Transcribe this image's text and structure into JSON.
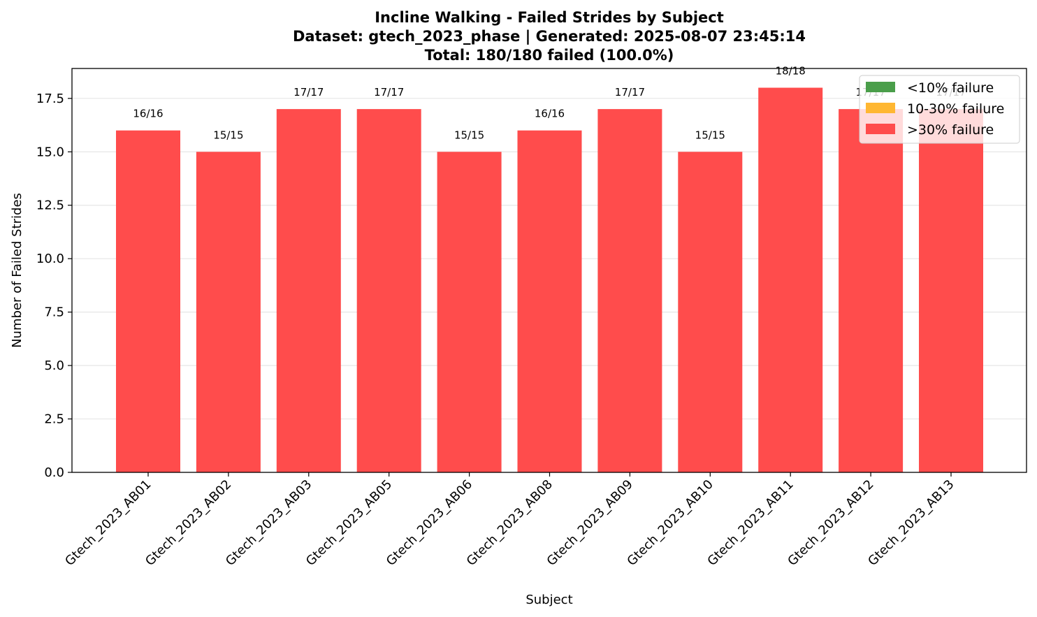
{
  "chart_data": {
    "type": "bar",
    "title": [
      "Incline Walking - Failed Strides by Subject",
      "Dataset: gtech_2023_phase | Generated: 2025-08-07 23:45:14",
      "Total: 180/180 failed (100.0%)"
    ],
    "xlabel": "Subject",
    "ylabel": "Number of Failed Strides",
    "categories": [
      "Gtech_2023_AB01",
      "Gtech_2023_AB02",
      "Gtech_2023_AB03",
      "Gtech_2023_AB05",
      "Gtech_2023_AB06",
      "Gtech_2023_AB08",
      "Gtech_2023_AB09",
      "Gtech_2023_AB10",
      "Gtech_2023_AB11",
      "Gtech_2023_AB12",
      "Gtech_2023_AB13"
    ],
    "values": [
      16,
      15,
      17,
      17,
      15,
      16,
      17,
      15,
      18,
      17,
      17
    ],
    "data_labels": [
      "16/16",
      "15/15",
      "17/17",
      "17/17",
      "15/15",
      "16/16",
      "17/17",
      "15/15",
      "18/18",
      "17/17",
      "17/17"
    ],
    "ylim": [
      0,
      18.9
    ],
    "yticks": [
      "0.0",
      "2.5",
      "5.0",
      "7.5",
      "10.0",
      "12.5",
      "15.0",
      "17.5"
    ],
    "grid": "y",
    "bar_color": "#ff4c4c",
    "legend": {
      "placement": "top-right",
      "items": [
        {
          "label": "<10% failure",
          "color": "#4a9e4a"
        },
        {
          "label": "10-30% failure",
          "color": "#ffb732"
        },
        {
          "label": ">30% failure",
          "color": "#ff4c4c"
        }
      ]
    }
  }
}
